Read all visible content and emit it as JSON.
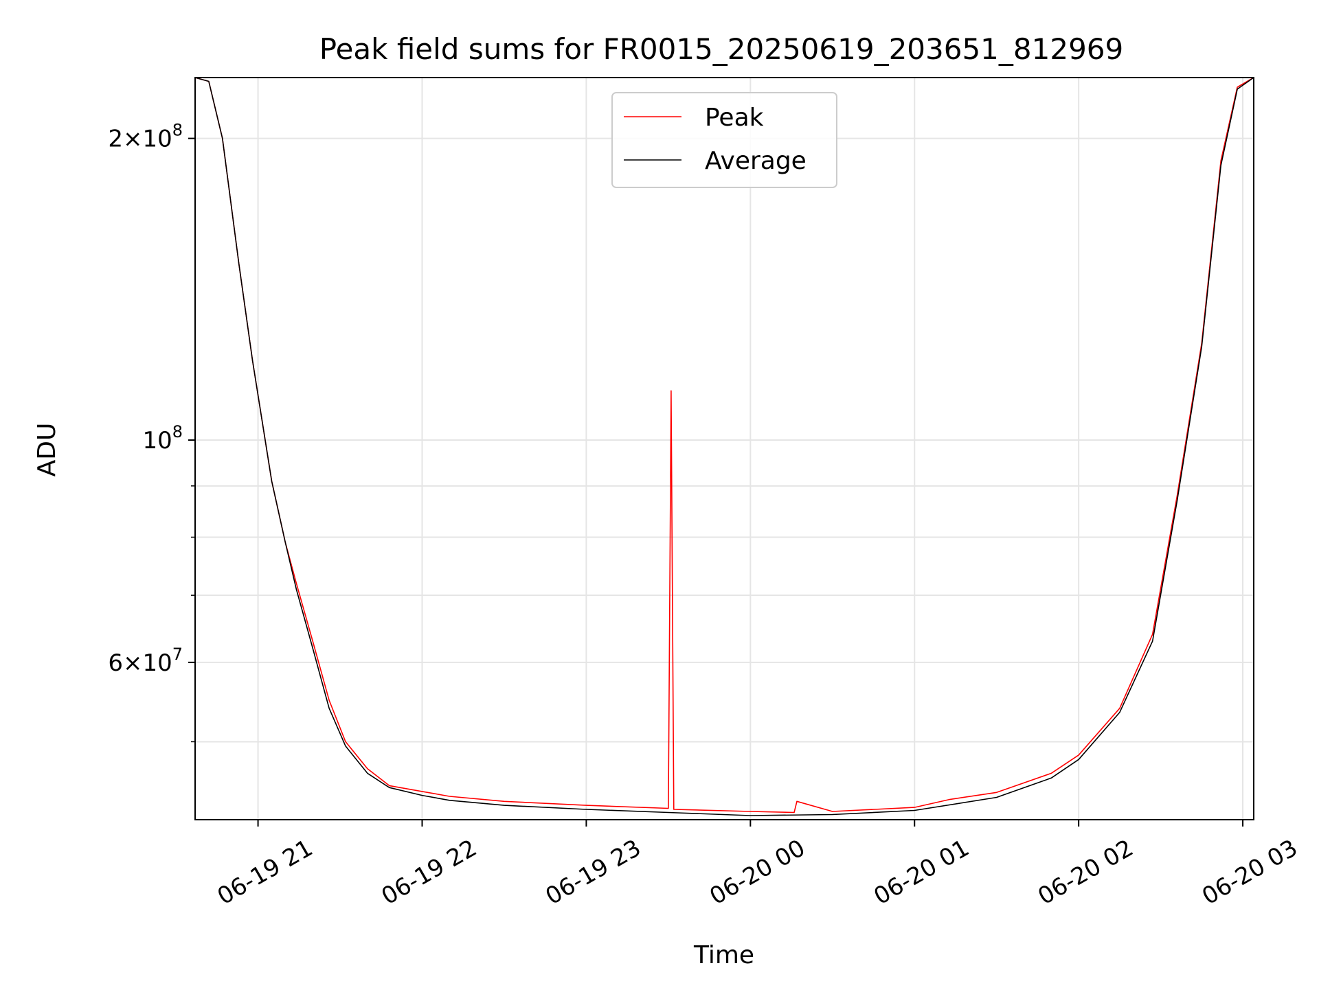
{
  "chart_data": {
    "type": "line",
    "title": "Peak field sums for FR0015_20250619_203651_812969",
    "xlabel": "Time",
    "ylabel": "ADU",
    "y_scale": "log",
    "ylim": [
      41800000,
      230000000
    ],
    "xlim": [
      "2025-06-19 20:37",
      "2025-06-20 03:04"
    ],
    "x_ticks": [
      "06-19 21",
      "06-19 22",
      "06-19 23",
      "06-20 00",
      "06-20 01",
      "06-20 02",
      "06-20 03"
    ],
    "x_tick_values": [
      "2025-06-19 21:00",
      "2025-06-19 22:00",
      "2025-06-19 23:00",
      "2025-06-20 00:00",
      "2025-06-20 01:00",
      "2025-06-20 02:00",
      "2025-06-20 03:00"
    ],
    "y_major_ticks": [
      {
        "value": 200000000,
        "mantissa": "2",
        "exponent": "8"
      },
      {
        "value": 100000000,
        "mantissa": "",
        "exponent": "8"
      },
      {
        "value": 60000000,
        "mantissa": "6",
        "exponent": "7"
      }
    ],
    "y_minor_ticks": [
      50000000,
      70000000,
      80000000,
      90000000
    ],
    "grid": true,
    "legend_position": "upper center",
    "series": [
      {
        "name": "Peak",
        "color": "#ff0000",
        "x": [
          "2025-06-19 20:37",
          "2025-06-19 20:42",
          "2025-06-19 20:47",
          "2025-06-19 20:53",
          "2025-06-19 20:58",
          "2025-06-19 21:05",
          "2025-06-19 21:10",
          "2025-06-19 21:14",
          "2025-06-19 21:20",
          "2025-06-19 21:26",
          "2025-06-19 21:32",
          "2025-06-19 21:40",
          "2025-06-19 21:48",
          "2025-06-19 22:00",
          "2025-06-19 22:10",
          "2025-06-19 22:30",
          "2025-06-19 23:00",
          "2025-06-19 23:30",
          "2025-06-19 23:31",
          "2025-06-19 23:32",
          "2025-06-20 00:00",
          "2025-06-20 00:16",
          "2025-06-20 00:17",
          "2025-06-20 00:30",
          "2025-06-20 01:00",
          "2025-06-20 01:13",
          "2025-06-20 01:30",
          "2025-06-20 01:50",
          "2025-06-20 02:00",
          "2025-06-20 02:15",
          "2025-06-20 02:27",
          "2025-06-20 02:36",
          "2025-06-20 02:45",
          "2025-06-20 02:52",
          "2025-06-20 02:58",
          "2025-06-20 03:04"
        ],
        "values": [
          230000000,
          228000000,
          200000000,
          150000000,
          120000000,
          91000000,
          79000000,
          72000000,
          63000000,
          55000000,
          50000000,
          47000000,
          45200000,
          44600000,
          44100000,
          43600000,
          43200000,
          42900000,
          112000000,
          42800000,
          42600000,
          42500000,
          43600000,
          42600000,
          43000000,
          43800000,
          44500000,
          46500000,
          48500000,
          54000000,
          64000000,
          88000000,
          125000000,
          190000000,
          225000000,
          230000000
        ]
      },
      {
        "name": "Average",
        "color": "#000000",
        "x": [
          "2025-06-19 20:37",
          "2025-06-19 20:42",
          "2025-06-19 20:47",
          "2025-06-19 20:53",
          "2025-06-19 20:58",
          "2025-06-19 21:05",
          "2025-06-19 21:10",
          "2025-06-19 21:14",
          "2025-06-19 21:20",
          "2025-06-19 21:26",
          "2025-06-19 21:32",
          "2025-06-19 21:40",
          "2025-06-19 21:48",
          "2025-06-19 22:00",
          "2025-06-19 22:10",
          "2025-06-19 22:30",
          "2025-06-19 23:00",
          "2025-06-19 23:30",
          "2025-06-20 00:00",
          "2025-06-20 00:30",
          "2025-06-20 01:00",
          "2025-06-20 01:30",
          "2025-06-20 01:50",
          "2025-06-20 02:00",
          "2025-06-20 02:15",
          "2025-06-20 02:27",
          "2025-06-20 02:36",
          "2025-06-20 02:45",
          "2025-06-20 02:52",
          "2025-06-20 02:58",
          "2025-06-20 03:04"
        ],
        "values": [
          230000000,
          228000000,
          200000000,
          150000000,
          120000000,
          91000000,
          79000000,
          71000000,
          62000000,
          54000000,
          49500000,
          46500000,
          45000000,
          44200000,
          43700000,
          43200000,
          42800000,
          42500000,
          42200000,
          42300000,
          42700000,
          44000000,
          46000000,
          48000000,
          53500000,
          63000000,
          87000000,
          124000000,
          188000000,
          224000000,
          230000000
        ]
      }
    ]
  }
}
